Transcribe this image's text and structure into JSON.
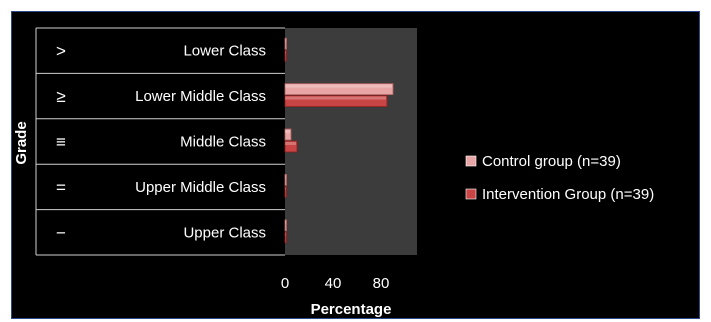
{
  "chart_data": {
    "type": "bar",
    "orientation": "horizontal",
    "title": "",
    "xlabel": "Percentage",
    "ylabel": "Grade",
    "xlim": [
      0,
      100
    ],
    "xticks": [
      "0",
      "40",
      "80"
    ],
    "grades": [
      {
        "symbol": ">",
        "label": "Lower Class"
      },
      {
        "symbol": "≥",
        "label": "Lower Middle Class"
      },
      {
        "symbol": "≡",
        "label": "Middle Class"
      },
      {
        "symbol": "=",
        "label": "Upper Middle Class"
      },
      {
        "symbol": "−",
        "label": "Upper Class"
      }
    ],
    "series": [
      {
        "name": "Control group (n=39)",
        "color": "#e7a5a5",
        "values": [
          0,
          90,
          5,
          0,
          0
        ]
      },
      {
        "name": "Intervention Group (n=39)",
        "color": "#c94545",
        "values": [
          0,
          85,
          10,
          0,
          0
        ]
      }
    ],
    "legend_position": "right",
    "plot_background": "#3c3c3c",
    "page_background": "#000000"
  }
}
